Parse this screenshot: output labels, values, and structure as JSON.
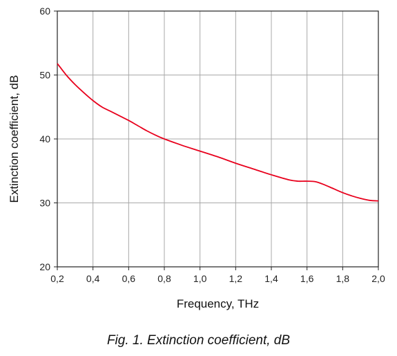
{
  "chart_data": {
    "type": "line",
    "xlabel": "Frequency, THz",
    "ylabel": "Extinction coefficient, dB",
    "xlim": [
      0.2,
      2.0
    ],
    "ylim": [
      20,
      60
    ],
    "xticks": [
      "0,2",
      "0,4",
      "0,6",
      "0,8",
      "1,0",
      "1,2",
      "1,4",
      "1,6",
      "1,8",
      "2,0"
    ],
    "yticks": [
      "20",
      "30",
      "40",
      "50",
      "60"
    ],
    "grid": true,
    "line_color": "#e8001c",
    "series": [
      {
        "x": [
          0.2,
          0.25,
          0.3,
          0.35,
          0.4,
          0.45,
          0.5,
          0.55,
          0.6,
          0.65,
          0.7,
          0.75,
          0.8,
          0.9,
          1.0,
          1.1,
          1.2,
          1.3,
          1.4,
          1.5,
          1.55,
          1.6,
          1.65,
          1.7,
          1.75,
          1.8,
          1.85,
          1.9,
          1.95,
          2.0
        ],
        "y": [
          51.8,
          50.0,
          48.5,
          47.2,
          46.0,
          45.0,
          44.3,
          43.6,
          42.9,
          42.1,
          41.3,
          40.6,
          40.0,
          39.0,
          38.1,
          37.2,
          36.2,
          35.3,
          34.4,
          33.6,
          33.4,
          33.4,
          33.3,
          32.8,
          32.2,
          31.6,
          31.1,
          30.7,
          30.4,
          30.3
        ]
      }
    ]
  },
  "caption": "Fig. 1. Extinction coefficient, dB"
}
